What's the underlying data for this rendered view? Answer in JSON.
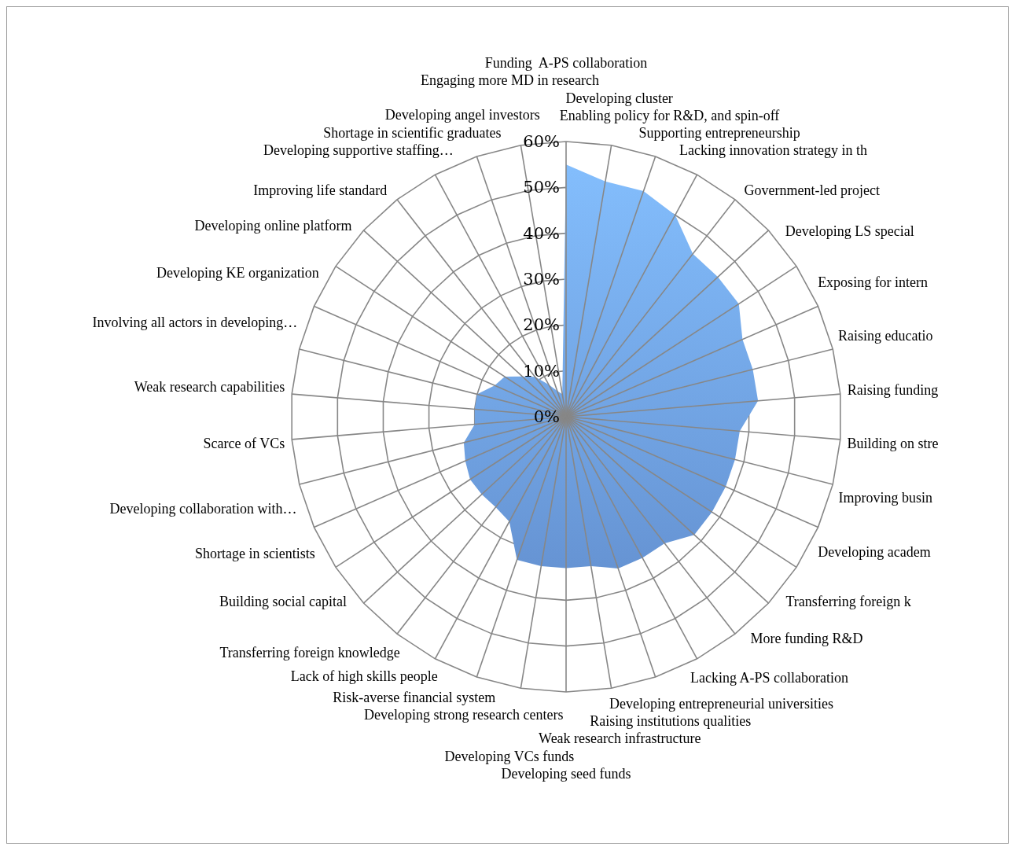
{
  "chart_data": {
    "type": "radar",
    "categories": [
      "Funding  A-PS collaboration",
      "Developing cluster",
      "Enabling policy for R&D, and spin-off",
      "Supporting entrepreneurship",
      "Lacking innovation strategy in th",
      "Government-led project",
      "Developing LS special",
      "Exposing for intern",
      "Raising educatio",
      "Raising funding",
      "Building on stre",
      "Improving busin",
      "Developing academ",
      "Transferring foreign k",
      "More funding R&D",
      "Lacking A-PS collaboration",
      "Developing entrepreneurial universities",
      "Raising institutions qualities",
      "Weak research infrastructure",
      "Developing seed funds",
      "Developing VCs funds",
      "Developing strong research centers",
      "Risk-averse financial system",
      "Lack of high skills people",
      "Transferring foreign knowledge",
      "Building social capital",
      "Shortage in scientists",
      "Developing collaboration with…",
      "Scarce of VCs",
      "Weak research capabilities",
      "Involving all actors in developing…",
      "Developing KE organization",
      "Developing online platform",
      "Improving life standard",
      "Developing supportive staffing…",
      "Shortage in scientific graduates",
      "Developing angel investors",
      "Engaging more MD in research"
    ],
    "series": [
      {
        "color": "#6d9eea",
        "values": [
          55,
          52,
          52,
          50,
          45,
          45,
          45,
          42,
          42,
          42,
          38,
          38,
          38,
          38,
          38,
          35,
          35,
          35,
          33,
          33,
          33,
          33,
          26,
          25,
          25,
          25,
          24,
          23,
          20,
          20,
          20,
          17,
          16,
          13,
          11,
          8,
          6,
          5
        ]
      }
    ],
    "ylim": [
      0,
      60
    ],
    "yticks": [
      {
        "value": 0,
        "label": "0%"
      },
      {
        "value": 10,
        "label": "10%"
      },
      {
        "value": 20,
        "label": "20%"
      },
      {
        "value": 30,
        "label": "30%"
      },
      {
        "value": 40,
        "label": "40%"
      },
      {
        "value": 50,
        "label": "50%"
      },
      {
        "value": 60,
        "label": "60%"
      }
    ],
    "grid": true
  }
}
